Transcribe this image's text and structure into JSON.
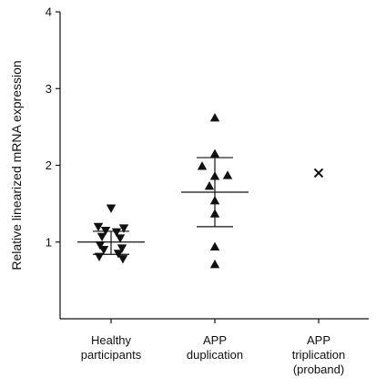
{
  "chart_data": {
    "type": "scatter",
    "title": "",
    "xlabel": "",
    "ylabel": "Relative linearized mRNA expression",
    "ylim": [
      0,
      4
    ],
    "yticks": [
      "1",
      "2",
      "3",
      "4"
    ],
    "grid": false,
    "legend": "none",
    "categories": [
      [
        "Healthy",
        "participants"
      ],
      [
        "APP",
        "duplication"
      ],
      [
        "APP",
        "triplication",
        "(proband)"
      ]
    ],
    "series": [
      {
        "marker": "triangle-down",
        "category_index": 0,
        "values": [
          1.44,
          1.2,
          1.18,
          1.15,
          1.13,
          1.07,
          1.05,
          0.96,
          0.92,
          0.9,
          0.85,
          0.81,
          0.78
        ],
        "mean": 1.0,
        "sd_upper": 1.14,
        "sd_lower": 0.84
      },
      {
        "marker": "triangle-up",
        "category_index": 1,
        "values": [
          2.62,
          2.15,
          1.99,
          1.87,
          1.86,
          1.73,
          1.54,
          1.37,
          0.94,
          0.71
        ],
        "mean": 1.65,
        "sd_upper": 2.1,
        "sd_lower": 1.2
      },
      {
        "marker": "x",
        "category_index": 2,
        "values": [
          1.9
        ]
      }
    ],
    "colors": {
      "marker": "#111111",
      "axis": "#111111"
    }
  }
}
